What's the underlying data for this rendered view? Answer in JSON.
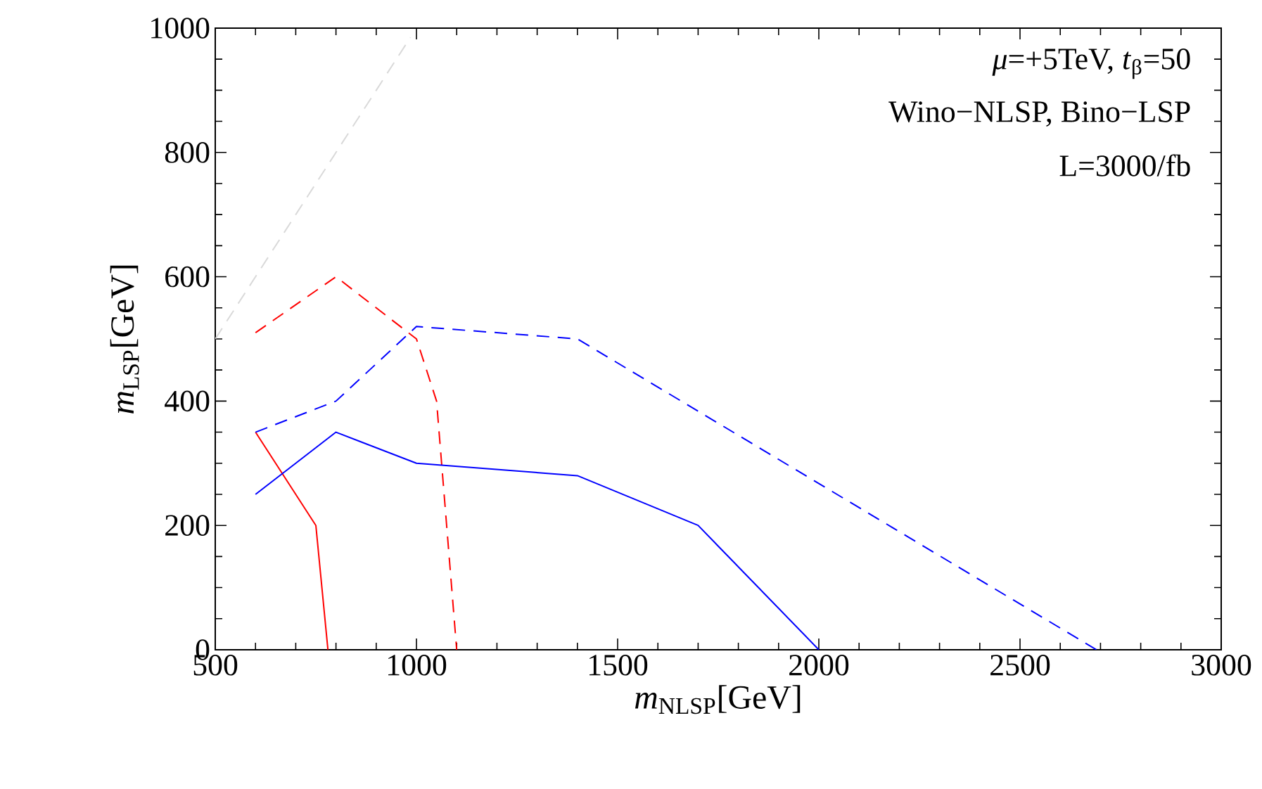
{
  "chart_data": {
    "type": "line",
    "xlabel": "*m*$_{NLSP}$[GeV]",
    "ylabel": "*m*$_{LSP}$[GeV]",
    "annotations": [
      "*μ*=+5TeV, *t*$_{β}$=50",
      "Wino−NLSP, Bino−LSP",
      "L=3000/fb"
    ],
    "xlim": [
      500,
      3000
    ],
    "ylim": [
      0,
      1000
    ],
    "xticks": [
      500,
      1000,
      1500,
      2000,
      2500,
      3000
    ],
    "yticks": [
      0,
      200,
      400,
      600,
      800,
      1000
    ],
    "series": [
      {
        "color": "#d9d9d9",
        "line_style": "dashed",
        "x": [
          500,
          985
        ],
        "values": [
          500,
          985
        ]
      },
      {
        "color": "#ff0000",
        "line_style": "solid",
        "x": [
          600,
          750,
          780
        ],
        "values": [
          350,
          200,
          0
        ]
      },
      {
        "color": "#ff0000",
        "line_style": "dashed",
        "x": [
          600,
          800,
          1000,
          1050,
          1100
        ],
        "values": [
          510,
          600,
          500,
          400,
          0
        ]
      },
      {
        "color": "#0000ff",
        "line_style": "solid",
        "x": [
          600,
          800,
          1000,
          1400,
          1700,
          2000
        ],
        "values": [
          250,
          350,
          300,
          280,
          200,
          0
        ]
      },
      {
        "color": "#0000ff",
        "line_style": "dashed",
        "x": [
          600,
          800,
          1000,
          1400,
          2690
        ],
        "values": [
          350,
          400,
          520,
          500,
          0
        ]
      }
    ]
  }
}
